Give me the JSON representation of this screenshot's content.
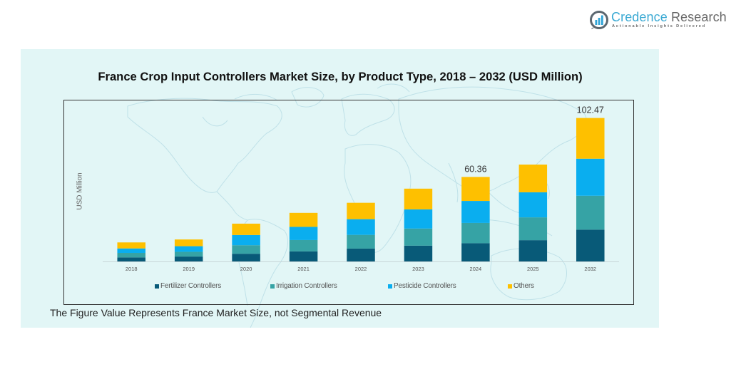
{
  "logo": {
    "name_part1": "Credence",
    "name_part2": " Research",
    "tagline": "Actionable Insights Delivered"
  },
  "footnote": "The Figure Value Represents France Market Size, not Segmental Revenue",
  "chart_data": {
    "type": "bar",
    "stacked": true,
    "title": "France Crop Input Controllers Market Size, by Product Type, 2018 – 2032 (USD Million)",
    "xlabel": "",
    "ylabel": "USD Million",
    "ylim": [
      0,
      115
    ],
    "grid": false,
    "legend": "bottom",
    "categories": [
      "2018",
      "2019",
      "2020",
      "2021",
      "2022",
      "2023",
      "2024",
      "2025",
      "2032"
    ],
    "series": [
      {
        "name": "Fertilizer Controllers",
        "color": "#085a78",
        "values": [
          2.9,
          3.5,
          5.5,
          7.2,
          9.2,
          11.3,
          13.04,
          15.2,
          22.75
        ]
      },
      {
        "name": "Irrigation Controllers",
        "color": "#36a3a5",
        "values": [
          3.2,
          3.4,
          6.1,
          8.1,
          9.8,
          12.2,
          14.47,
          16.3,
          24.17
        ]
      },
      {
        "name": "Pesticide Controllers",
        "color": "#0aaeef",
        "values": [
          3.2,
          4.0,
          7.3,
          9.4,
          11.2,
          13.7,
          15.71,
          17.9,
          26.48
        ]
      },
      {
        "name": "Others",
        "color": "#fec000",
        "values": [
          4.3,
          4.8,
          8.1,
          10.0,
          11.7,
          14.8,
          17.14,
          19.8,
          29.07
        ]
      }
    ],
    "data_labels": [
      {
        "category": "2024",
        "text": "60.36"
      },
      {
        "category": "2032",
        "text": "102.47"
      }
    ]
  }
}
